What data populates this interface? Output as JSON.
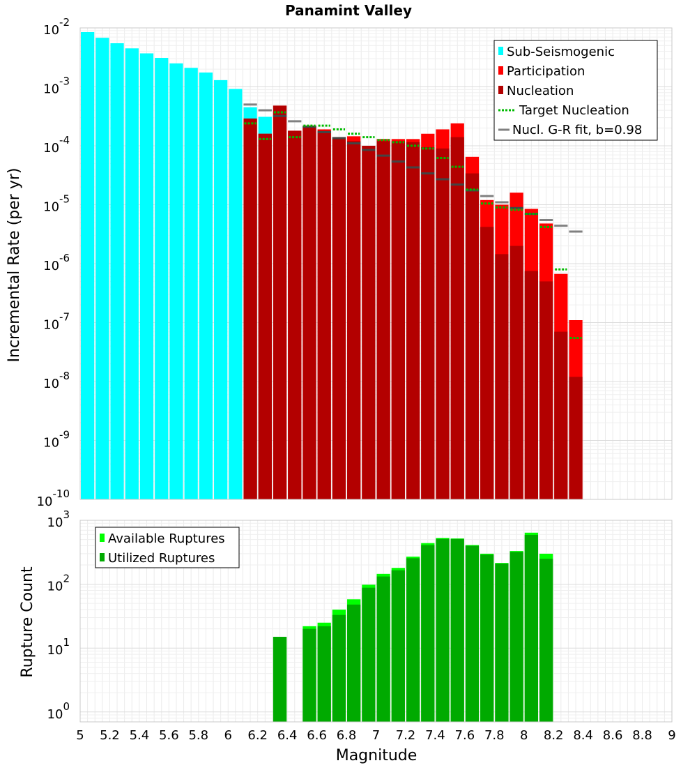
{
  "chart_data": [
    {
      "type": "bar",
      "title": "Panamint Valley",
      "xlabel": "",
      "ylabel": "Incremental Rate (per yr)",
      "yscale": "log",
      "ylim": [
        1e-10,
        0.01
      ],
      "xlim": [
        5,
        9
      ],
      "bin_width": 0.1,
      "grid": true,
      "legend_position": "top-right",
      "legend": [
        {
          "label": "Sub-Seismogenic",
          "color": "#00ffff",
          "style": "bar"
        },
        {
          "label": "Participation",
          "color": "#ff0000",
          "style": "bar"
        },
        {
          "label": "Nucleation",
          "color": "#b30000",
          "style": "bar"
        },
        {
          "label": "Target Nucleation",
          "color": "#00bb00",
          "style": "dotted-line"
        },
        {
          "label": "Nucl. G-R fit, b=0.98",
          "color": "#808080",
          "style": "line"
        }
      ],
      "series": [
        {
          "name": "Sub-Seismogenic",
          "x": [
            5.05,
            5.15,
            5.25,
            5.35,
            5.45,
            5.55,
            5.65,
            5.75,
            5.85,
            5.95,
            6.05,
            6.15,
            6.25
          ],
          "values": [
            0.0085,
            0.0068,
            0.0055,
            0.0045,
            0.0037,
            0.0031,
            0.0025,
            0.0021,
            0.00175,
            0.0013,
            0.00092,
            0.00045,
            0.00031
          ]
        },
        {
          "name": "Participation",
          "x": [
            6.15,
            6.25,
            6.35,
            6.45,
            6.55,
            6.65,
            6.75,
            6.85,
            6.95,
            7.05,
            7.15,
            7.25,
            7.35,
            7.45,
            7.55,
            7.65,
            7.75,
            7.85,
            7.95,
            8.05,
            8.15,
            8.25,
            8.35
          ],
          "values": [
            0.00029,
            0.00016,
            0.00048,
            0.00018,
            0.00022,
            0.00019,
            0.00014,
            0.000145,
            0.0001,
            0.00013,
            0.00013,
            0.00013,
            0.00016,
            0.00019,
            0.00024,
            6.5e-05,
            1.2e-05,
            1e-05,
            1.6e-05,
            8.5e-06,
            4.8e-06,
            6.7e-07,
            1.1e-07
          ]
        },
        {
          "name": "Nucleation",
          "x": [
            6.15,
            6.25,
            6.35,
            6.45,
            6.55,
            6.65,
            6.75,
            6.85,
            6.95,
            7.05,
            7.15,
            7.25,
            7.35,
            7.45,
            7.55,
            7.65,
            7.75,
            7.85,
            7.95,
            8.05,
            8.15,
            8.25,
            8.35
          ],
          "values": [
            0.00029,
            0.00016,
            0.00048,
            0.00018,
            0.00021,
            0.00018,
            0.00013,
            0.00012,
            0.0001,
            0.00012,
            0.00012,
            0.000115,
            9.5e-05,
            9e-05,
            0.00014,
            3.4e-05,
            4.2e-06,
            1.45e-06,
            2e-06,
            7.5e-07,
            5e-07,
            7e-08,
            1.2e-08
          ]
        },
        {
          "name": "Target Nucleation",
          "x": [
            6.15,
            6.25,
            6.35,
            6.45,
            6.55,
            6.65,
            6.75,
            6.85,
            6.95,
            7.05,
            7.15,
            7.25,
            7.35,
            7.45,
            7.55,
            7.65,
            7.75,
            7.85,
            7.95,
            8.05,
            8.15,
            8.25,
            8.35
          ],
          "values": [
            0.00024,
            0.00013,
            0.00037,
            0.00014,
            0.00022,
            0.00022,
            0.00019,
            0.00016,
            0.00014,
            0.000125,
            0.000115,
            0.0001,
            9e-05,
            6.2e-05,
            4.4e-05,
            1.8e-05,
            1.05e-05,
            9e-06,
            8.2e-06,
            7e-06,
            4.2e-06,
            8e-07,
            5.5e-08
          ]
        },
        {
          "name": "Nucl. G-R fit, b=0.98",
          "x": [
            6.15,
            6.25,
            6.35,
            6.45,
            6.55,
            6.65,
            6.75,
            6.85,
            6.95,
            7.05,
            7.15,
            7.25,
            7.35,
            7.45,
            7.55,
            7.65,
            7.75,
            7.85,
            7.95,
            8.05,
            8.15,
            8.25,
            8.35
          ],
          "values": [
            0.0005,
            0.0004,
            0.00032,
            0.00026,
            0.00021,
            0.00017,
            0.000135,
            0.00011,
            8.5e-05,
            6.8e-05,
            5.4e-05,
            4.3e-05,
            3.4e-05,
            2.7e-05,
            2.2e-05,
            1.75e-05,
            1.4e-05,
            1.1e-05,
            8.8e-06,
            7e-06,
            5.5e-06,
            4.4e-06,
            3.5e-06
          ]
        }
      ]
    },
    {
      "type": "bar",
      "title": "",
      "xlabel": "Magnitude",
      "ylabel": "Rupture Count",
      "yscale": "log",
      "ylim": [
        0.7,
        1000
      ],
      "xlim": [
        5,
        9
      ],
      "bin_width": 0.1,
      "grid": true,
      "legend_position": "top-left",
      "legend": [
        {
          "label": "Available Ruptures",
          "color": "#00ff00",
          "style": "bar"
        },
        {
          "label": "Utilized Ruptures",
          "color": "#00aa00",
          "style": "bar"
        }
      ],
      "series": [
        {
          "name": "Available Ruptures",
          "x": [
            6.35,
            6.55,
            6.65,
            6.75,
            6.85,
            6.95,
            7.05,
            7.15,
            7.25,
            7.35,
            7.45,
            7.55,
            7.65,
            7.75,
            7.85,
            7.95,
            8.05,
            8.15
          ],
          "values": [
            15,
            22,
            25,
            40,
            58,
            98,
            145,
            180,
            270,
            440,
            530,
            520,
            410,
            300,
            215,
            330,
            640,
            300
          ]
        },
        {
          "name": "Utilized Ruptures",
          "x": [
            6.35,
            6.55,
            6.65,
            6.75,
            6.85,
            6.95,
            7.05,
            7.15,
            7.25,
            7.35,
            7.45,
            7.55,
            7.65,
            7.75,
            7.85,
            7.95,
            8.05,
            8.15
          ],
          "values": [
            15,
            20,
            22,
            33,
            48,
            88,
            132,
            165,
            255,
            410,
            510,
            510,
            400,
            290,
            210,
            320,
            590,
            250
          ]
        }
      ]
    }
  ],
  "shared_x_ticks": [
    "5",
    "5.2",
    "5.4",
    "5.6",
    "5.8",
    "6",
    "6.2",
    "6.4",
    "6.6",
    "6.8",
    "7",
    "7.2",
    "7.4",
    "7.6",
    "7.8",
    "8",
    "8.2",
    "8.4",
    "8.6",
    "8.8",
    "9"
  ],
  "top_y_ticks": [
    {
      "base": "10",
      "exp": "-10",
      "value": 1e-10
    },
    {
      "base": "10",
      "exp": "-9",
      "value": 1e-09
    },
    {
      "base": "10",
      "exp": "-8",
      "value": 1e-08
    },
    {
      "base": "10",
      "exp": "-7",
      "value": 1e-07
    },
    {
      "base": "10",
      "exp": "-6",
      "value": 1e-06
    },
    {
      "base": "10",
      "exp": "-5",
      "value": 1e-05
    },
    {
      "base": "10",
      "exp": "-4",
      "value": 0.0001
    },
    {
      "base": "10",
      "exp": "-3",
      "value": 0.001
    },
    {
      "base": "10",
      "exp": "-2",
      "value": 0.01
    }
  ],
  "bottom_y_ticks": [
    {
      "base": "10",
      "exp": "0",
      "value": 1
    },
    {
      "base": "10",
      "exp": "1",
      "value": 10
    },
    {
      "base": "10",
      "exp": "2",
      "value": 100
    },
    {
      "base": "10",
      "exp": "3",
      "value": 1000
    }
  ]
}
